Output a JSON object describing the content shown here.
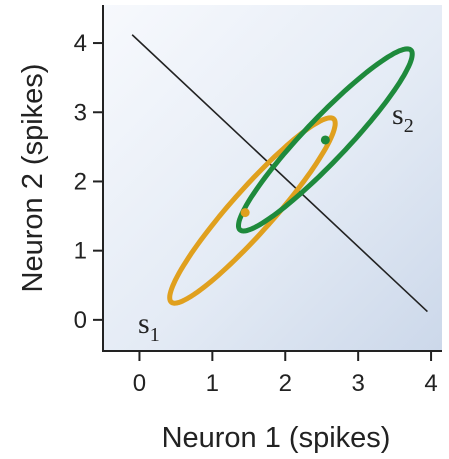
{
  "chart_data": {
    "type": "scatter",
    "title": "",
    "xlabel": "Neuron 1 (spikes)",
    "ylabel": "Neuron 2 (spikes)",
    "xlim": [
      -0.5,
      4.15
    ],
    "ylim": [
      -0.45,
      4.55
    ],
    "xticks": [
      "0",
      "1",
      "2",
      "3",
      "4"
    ],
    "yticks": [
      "0",
      "1",
      "2",
      "3",
      "4"
    ],
    "grid": false,
    "background": "light blue-gray gradient",
    "decision_boundary": {
      "from": [
        -0.1,
        4.12
      ],
      "to": [
        3.95,
        0.12
      ],
      "color": "#222222"
    },
    "series": [
      {
        "name": "s",
        "subscript": "1",
        "color": "#E0A01E",
        "mean": [
          1.45,
          1.55
        ],
        "ellipse_center": [
          1.55,
          1.58
        ],
        "ellipse_semi_major": 1.73,
        "ellipse_semi_minor": 0.3,
        "ellipse_angle_deg": 50
      },
      {
        "name": "s",
        "subscript": "2",
        "color": "#1E8A3C",
        "mean": [
          2.55,
          2.6
        ],
        "ellipse_center": [
          2.55,
          2.6
        ],
        "ellipse_semi_major": 1.75,
        "ellipse_semi_minor": 0.3,
        "ellipse_angle_deg": 48
      }
    ]
  }
}
